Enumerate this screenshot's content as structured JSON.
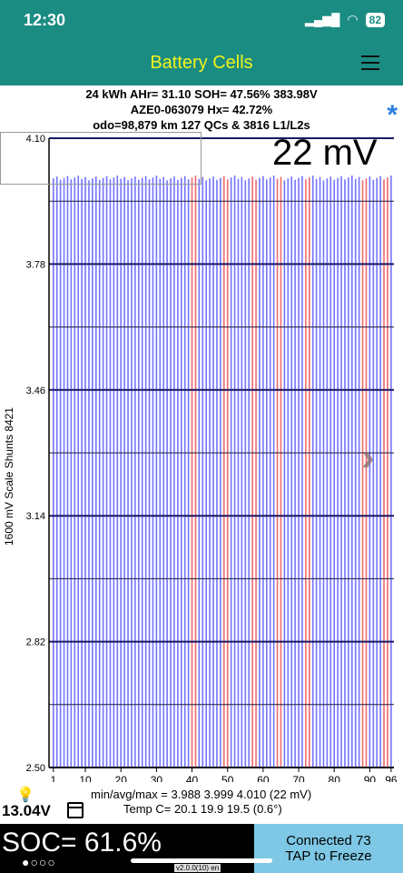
{
  "status": {
    "time": "12:30",
    "battery": "82"
  },
  "app": {
    "title": "Battery Cells"
  },
  "info": {
    "line1": "24 kWh  AHr= 31.10  SOH= 47.56%    383.98V",
    "line2": "AZE0-063079   Hx= 42.72%",
    "line3": "odo=98,879 km 127 QCs & 3816 L1/L2s"
  },
  "chart_data": {
    "type": "bar",
    "ymin": 2.5,
    "ymax": 4.1,
    "ytick_labels": [
      "4.10",
      "3.78",
      "3.46",
      "3.14",
      "2.82",
      "2.50"
    ],
    "ytick_values": [
      4.1,
      3.78,
      3.46,
      3.14,
      2.82,
      2.5
    ],
    "x_tick_labels": [
      "1",
      "10",
      "20",
      "30",
      "40",
      "50",
      "60",
      "70",
      "80",
      "90",
      "96"
    ],
    "cells": 96,
    "avg": 3.999,
    "red_cells": [
      40,
      41,
      49,
      50,
      57,
      58,
      64,
      65,
      72,
      73,
      88,
      89,
      94,
      95
    ],
    "colors": {
      "blue": "#5a5aff",
      "red": "#f05050",
      "grid": "#1a1a66"
    }
  },
  "overlay": {
    "mv": "22 mV",
    "side": "1600 mV Scale   Shunts 8421"
  },
  "stats": {
    "minmax": "min/avg/max = 3.988 3.999 4.010  (22 mV)",
    "temps": "Temp C= 20.1   19.9   19.5   (0.6°)",
    "voltage": "13.04V"
  },
  "footer": {
    "soc": "SOC= 61.6%",
    "dots": "●○○○",
    "connect1": "Connected 73",
    "connect2": "TAP to Freeze",
    "version": "v2.0.0(10) en"
  }
}
